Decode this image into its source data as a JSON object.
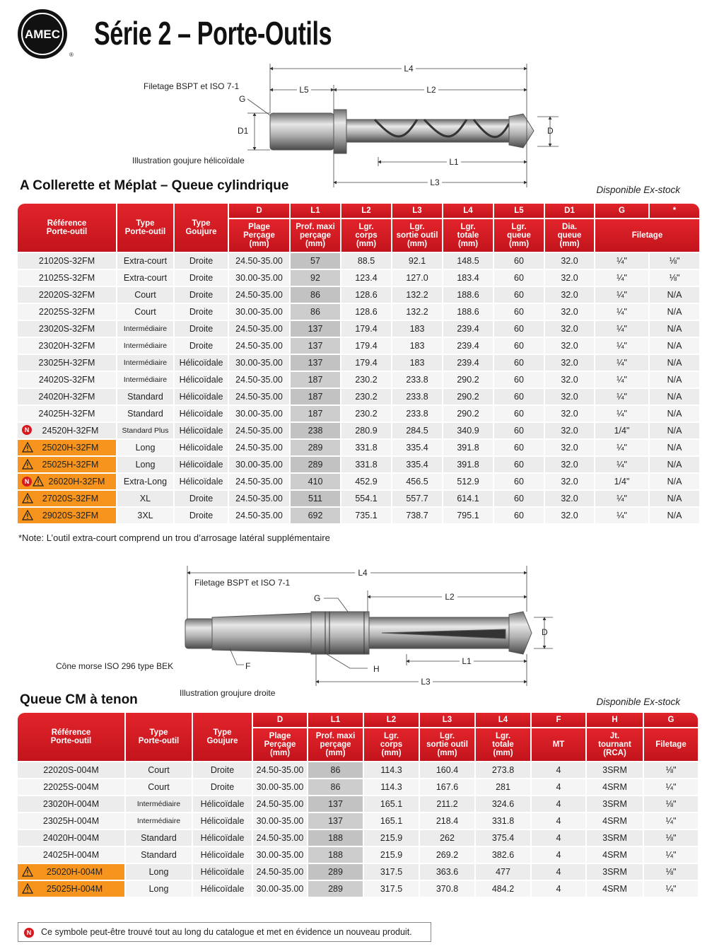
{
  "header": {
    "logo": "AMEC",
    "logo_mark": "®",
    "title": "Série 2 – Porte-Outils"
  },
  "new_symbol": "N",
  "diagram1": {
    "thread": "Filetage BSPT et ISO 7-1",
    "caption": "Illustration goujure hélicoïdale",
    "L4": "L4",
    "L5": "L5",
    "L2": "L2",
    "G": "G",
    "D1": "D1",
    "D": "D",
    "L1": "L1",
    "L3": "L3"
  },
  "section1": {
    "title": "A Collerette et Méplat – Queue cylindrique",
    "availability": "Disponible Ex-stock"
  },
  "table1": {
    "header_codes": [
      "D",
      "L1",
      "L2",
      "L3",
      "L4",
      "L5",
      "D1",
      "G",
      "*"
    ],
    "header_labels": [
      "Référence\nPorte-outil",
      "Type\nPorte-outil",
      "Type\nGoujure",
      "Plage\nPerçage\n(mm)",
      "Prof. maxi\nperçage\n(mm)",
      "Lgr.\ncorps\n(mm)",
      "Lgr.\nsortie outil\n(mm)",
      "Lgr.\ntotale\n(mm)",
      "Lgr.\nqueue\n(mm)",
      "Dia.\nqueue\n(mm)",
      "Filetage"
    ],
    "rows": [
      {
        "cells": [
          "21020S-32FM",
          "Extra-court",
          "Droite",
          "24.50-35.00",
          "57",
          "88.5",
          "92.1",
          "148.5",
          "60",
          "32.0",
          "¼\"",
          "⅛\""
        ]
      },
      {
        "cells": [
          "21025S-32FM",
          "Extra-court",
          "Droite",
          "30.00-35.00",
          "92",
          "123.4",
          "127.0",
          "183.4",
          "60",
          "32.0",
          "¼\"",
          "⅛\""
        ]
      },
      {
        "cells": [
          "22020S-32FM",
          "Court",
          "Droite",
          "24.50-35.00",
          "86",
          "128.6",
          "132.2",
          "188.6",
          "60",
          "32.0",
          "¼\"",
          "N/A"
        ]
      },
      {
        "cells": [
          "22025S-32FM",
          "Court",
          "Droite",
          "30.00-35.00",
          "86",
          "128.6",
          "132.2",
          "188.6",
          "60",
          "32.0",
          "¼\"",
          "N/A"
        ]
      },
      {
        "cells": [
          "23020S-32FM",
          "Intermédiaire",
          "Droite",
          "24.50-35.00",
          "137",
          "179.4",
          "183",
          "239.4",
          "60",
          "32.0",
          "¼\"",
          "N/A"
        ]
      },
      {
        "cells": [
          "23020H-32FM",
          "Intermédiaire",
          "Droite",
          "24.50-35.00",
          "137",
          "179.4",
          "183",
          "239.4",
          "60",
          "32.0",
          "¼\"",
          "N/A"
        ]
      },
      {
        "cells": [
          "23025H-32FM",
          "Intermédiaire",
          "Hélicoïdale",
          "30.00-35.00",
          "137",
          "179.4",
          "183",
          "239.4",
          "60",
          "32.0",
          "¼\"",
          "N/A"
        ]
      },
      {
        "cells": [
          "24020S-32FM",
          "Intermédiaire",
          "Hélicoïdale",
          "24.50-35.00",
          "187",
          "230.2",
          "233.8",
          "290.2",
          "60",
          "32.0",
          "¼\"",
          "N/A"
        ]
      },
      {
        "cells": [
          "24020H-32FM",
          "Standard",
          "Hélicoïdale",
          "24.50-35.00",
          "187",
          "230.2",
          "233.8",
          "290.2",
          "60",
          "32.0",
          "¼\"",
          "N/A"
        ]
      },
      {
        "cells": [
          "24025H-32FM",
          "Standard",
          "Hélicoïdale",
          "30.00-35.00",
          "187",
          "230.2",
          "233.8",
          "290.2",
          "60",
          "32.0",
          "¼\"",
          "N/A"
        ]
      },
      {
        "new": true,
        "cells": [
          "24520H-32FM",
          "Standard Plus",
          "Hélicoïdale",
          "24.50-35.00",
          "238",
          "280.9",
          "284.5",
          "340.9",
          "60",
          "32.0",
          "1/4\"",
          "N/A"
        ]
      },
      {
        "warning": true,
        "cells": [
          "25020H-32FM",
          "Long",
          "Hélicoïdale",
          "24.50-35.00",
          "289",
          "331.8",
          "335.4",
          "391.8",
          "60",
          "32.0",
          "¼\"",
          "N/A"
        ]
      },
      {
        "warning": true,
        "cells": [
          "25025H-32FM",
          "Long",
          "Hélicoïdale",
          "30.00-35.00",
          "289",
          "331.8",
          "335.4",
          "391.8",
          "60",
          "32.0",
          "¼\"",
          "N/A"
        ]
      },
      {
        "new": true,
        "warning": true,
        "cells": [
          "26020H-32FM",
          "Extra-Long",
          "Hélicoïdale",
          "24.50-35.00",
          "410",
          "452.9",
          "456.5",
          "512.9",
          "60",
          "32.0",
          "1/4\"",
          "N/A"
        ]
      },
      {
        "warning": true,
        "cells": [
          "27020S-32FM",
          "XL",
          "Droite",
          "24.50-35.00",
          "511",
          "554.1",
          "557.7",
          "614.1",
          "60",
          "32.0",
          "¼\"",
          "N/A"
        ]
      },
      {
        "warning": true,
        "cells": [
          "29020S-32FM",
          "3XL",
          "Droite",
          "24.50-35.00",
          "692",
          "735.1",
          "738.7",
          "795.1",
          "60",
          "32.0",
          "¼\"",
          "N/A"
        ]
      }
    ]
  },
  "note": "*Note: L’outil extra-court comprend un trou d’arrosage latéral supplémentaire",
  "diagram2": {
    "L4": "L4",
    "thread": "Filetage BSPT et ISO 7-1",
    "G": "G",
    "L2": "L2",
    "D": "D",
    "morse": "Cône morse ISO 296 type BEK",
    "F": "F",
    "H": "H",
    "L1": "L1",
    "L3": "L3",
    "caption": "Illustration groujure droite"
  },
  "section2": {
    "title": "Queue CM à tenon",
    "availability": "Disponible Ex-stock"
  },
  "table2": {
    "header_codes": [
      "D",
      "L1",
      "L2",
      "L3",
      "L4",
      "F",
      "H",
      "G"
    ],
    "header_labels": [
      "Référence\nPorte-outil",
      "Type\nPorte-outil",
      "Type\nGoujure",
      "Plage\nPerçage\n(mm)",
      "Prof. maxi\nperçage\n(mm)",
      "Lgr.\ncorps\n(mm)",
      "Lgr.\nsortie outil\n(mm)",
      "Lgr.\ntotale\n(mm)",
      "MT",
      "Jt.\ntournant\n(RCA)",
      "Filetage"
    ],
    "rows": [
      {
        "cells": [
          "22020S-004M",
          "Court",
          "Droite",
          "24.50-35.00",
          "86",
          "114.3",
          "160.4",
          "273.8",
          "4",
          "3SRM",
          "⅛\""
        ]
      },
      {
        "cells": [
          "22025S-004M",
          "Court",
          "Droite",
          "30.00-35.00",
          "86",
          "114.3",
          "167.6",
          "281",
          "4",
          "4SRM",
          "¼\""
        ]
      },
      {
        "cells": [
          "23020H-004M",
          "Intermédiaire",
          "Hélicoïdale",
          "24.50-35.00",
          "137",
          "165.1",
          "211.2",
          "324.6",
          "4",
          "3SRM",
          "⅛\""
        ]
      },
      {
        "cells": [
          "23025H-004M",
          "Intermédiaire",
          "Hélicoïdale",
          "30.00-35.00",
          "137",
          "165.1",
          "218.4",
          "331.8",
          "4",
          "4SRM",
          "¼\""
        ]
      },
      {
        "cells": [
          "24020H-004M",
          "Standard",
          "Hélicoïdale",
          "24.50-35.00",
          "188",
          "215.9",
          "262",
          "375.4",
          "4",
          "3SRM",
          "⅛\""
        ]
      },
      {
        "cells": [
          "24025H-004M",
          "Standard",
          "Hélicoïdale",
          "30.00-35.00",
          "188",
          "215.9",
          "269.2",
          "382.6",
          "4",
          "4SRM",
          "¼\""
        ]
      },
      {
        "warning": true,
        "cells": [
          "25020H-004M",
          "Long",
          "Hélicoïdale",
          "24.50-35.00",
          "289",
          "317.5",
          "363.6",
          "477",
          "4",
          "3SRM",
          "⅛\""
        ]
      },
      {
        "warning": true,
        "cells": [
          "25025H-004M",
          "Long",
          "Hélicoïdale",
          "30.00-35.00",
          "289",
          "317.5",
          "370.8",
          "484.2",
          "4",
          "4SRM",
          "¼\""
        ]
      }
    ]
  },
  "footer": "Ce symbole peut-être trouvé tout au long du catalogue et met en évidence un nouveau produit."
}
